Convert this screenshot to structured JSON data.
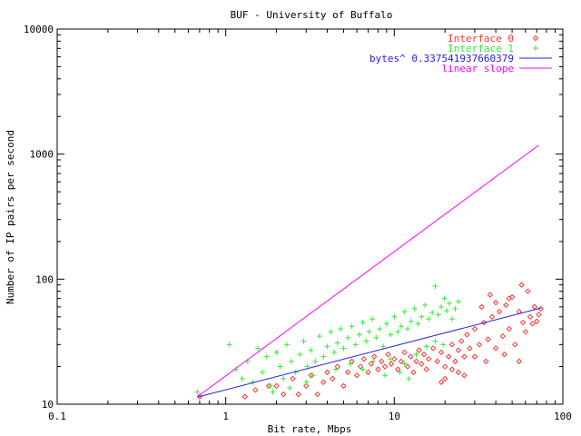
{
  "chart_data": {
    "type": "scatter",
    "title": "BUF - University of Buffalo",
    "xlabel": "Bit rate, Mbps",
    "ylabel": "Number of IP pairs per second",
    "xscale": "log",
    "yscale": "log",
    "xlim": [
      0.1,
      100
    ],
    "ylim": [
      10,
      10000
    ],
    "xticks": [
      {
        "value": 0.1,
        "label": "0.1"
      },
      {
        "value": 1,
        "label": "1"
      },
      {
        "value": 10,
        "label": "10"
      },
      {
        "value": 100,
        "label": "100"
      }
    ],
    "yticks": [
      {
        "value": 10,
        "label": "10"
      },
      {
        "value": 100,
        "label": "100"
      },
      {
        "value": 1000,
        "label": "1000"
      },
      {
        "value": 10000,
        "label": "10000"
      }
    ],
    "grid": false,
    "legend_position": "top-right",
    "series": [
      {
        "name": "Interface 0",
        "kind": "points",
        "marker": "diamond",
        "color": "#ff3333",
        "points": [
          [
            0.7,
            11.5
          ],
          [
            1.3,
            11.5
          ],
          [
            1.5,
            13
          ],
          [
            1.8,
            14
          ],
          [
            2.0,
            14
          ],
          [
            2.2,
            12
          ],
          [
            2.5,
            16
          ],
          [
            2.7,
            12
          ],
          [
            3.0,
            14
          ],
          [
            3.2,
            17
          ],
          [
            3.5,
            12
          ],
          [
            3.8,
            15
          ],
          [
            4.0,
            18
          ],
          [
            4.3,
            16
          ],
          [
            4.6,
            20
          ],
          [
            5.0,
            14
          ],
          [
            5.3,
            18
          ],
          [
            5.6,
            22
          ],
          [
            6.0,
            17
          ],
          [
            6.3,
            20
          ],
          [
            6.6,
            23
          ],
          [
            7.0,
            18
          ],
          [
            7.3,
            21
          ],
          [
            7.6,
            24
          ],
          [
            8.0,
            19
          ],
          [
            8.4,
            22
          ],
          [
            8.8,
            20
          ],
          [
            9.2,
            25
          ],
          [
            9.6,
            21
          ],
          [
            10.0,
            23
          ],
          [
            10.5,
            19
          ],
          [
            11.0,
            22
          ],
          [
            11.5,
            26
          ],
          [
            12.0,
            20
          ],
          [
            12.5,
            24
          ],
          [
            13.0,
            18
          ],
          [
            13.5,
            22
          ],
          [
            14.0,
            27
          ],
          [
            14.5,
            21
          ],
          [
            15.0,
            25
          ],
          [
            15.5,
            19
          ],
          [
            16.0,
            23
          ],
          [
            17.0,
            28
          ],
          [
            18.0,
            22
          ],
          [
            19.0,
            26
          ],
          [
            20.0,
            20
          ],
          [
            21.0,
            24
          ],
          [
            22.0,
            30
          ],
          [
            23.0,
            22
          ],
          [
            24.0,
            27
          ],
          [
            25.0,
            32
          ],
          [
            26.0,
            24
          ],
          [
            27.0,
            36
          ],
          [
            28.0,
            28
          ],
          [
            30.0,
            40
          ],
          [
            32.0,
            30
          ],
          [
            34.0,
            45
          ],
          [
            36.0,
            33
          ],
          [
            38.0,
            50
          ],
          [
            40.0,
            28
          ],
          [
            42.0,
            55
          ],
          [
            44.0,
            35
          ],
          [
            46.0,
            62
          ],
          [
            48.0,
            40
          ],
          [
            50.0,
            72
          ],
          [
            52.0,
            30
          ],
          [
            55.0,
            55
          ],
          [
            58.0,
            45
          ],
          [
            60.0,
            38
          ],
          [
            62.0,
            80
          ],
          [
            64.0,
            50
          ],
          [
            66.0,
            44
          ],
          [
            68.0,
            60
          ],
          [
            70.0,
            46
          ],
          [
            72.0,
            52
          ],
          [
            74.0,
            58
          ],
          [
            20.0,
            16
          ],
          [
            22.0,
            19
          ],
          [
            24.0,
            18
          ],
          [
            19.0,
            15
          ],
          [
            30.0,
            24
          ],
          [
            35.0,
            22
          ],
          [
            45.0,
            25
          ],
          [
            55.0,
            22
          ],
          [
            26.0,
            17
          ],
          [
            33.0,
            60
          ],
          [
            37.0,
            75
          ],
          [
            40.0,
            65
          ],
          [
            48.0,
            70
          ],
          [
            57.0,
            90
          ]
        ]
      },
      {
        "name": "Interface 1",
        "kind": "points",
        "marker": "plus",
        "color": "#33ee33",
        "points": [
          [
            0.68,
            12.5
          ],
          [
            1.05,
            30
          ],
          [
            1.15,
            19
          ],
          [
            1.25,
            16
          ],
          [
            1.35,
            22
          ],
          [
            1.45,
            15
          ],
          [
            1.55,
            28
          ],
          [
            1.65,
            18
          ],
          [
            1.75,
            24
          ],
          [
            1.85,
            14
          ],
          [
            2.0,
            26
          ],
          [
            2.1,
            20
          ],
          [
            2.2,
            16
          ],
          [
            2.3,
            30
          ],
          [
            2.45,
            22
          ],
          [
            2.6,
            18
          ],
          [
            2.75,
            25
          ],
          [
            2.9,
            32
          ],
          [
            3.05,
            20
          ],
          [
            3.2,
            27
          ],
          [
            3.4,
            22
          ],
          [
            3.6,
            35
          ],
          [
            3.8,
            24
          ],
          [
            4.0,
            29
          ],
          [
            4.2,
            38
          ],
          [
            4.4,
            26
          ],
          [
            4.6,
            31
          ],
          [
            4.8,
            40
          ],
          [
            5.0,
            28
          ],
          [
            5.3,
            34
          ],
          [
            5.6,
            42
          ],
          [
            5.9,
            30
          ],
          [
            6.2,
            36
          ],
          [
            6.5,
            45
          ],
          [
            6.8,
            32
          ],
          [
            7.1,
            38
          ],
          [
            7.4,
            48
          ],
          [
            7.8,
            34
          ],
          [
            8.2,
            40
          ],
          [
            8.6,
            29
          ],
          [
            9.0,
            44
          ],
          [
            9.5,
            36
          ],
          [
            10.0,
            50
          ],
          [
            10.5,
            38
          ],
          [
            11.0,
            42
          ],
          [
            11.5,
            55
          ],
          [
            12.0,
            40
          ],
          [
            12.6,
            46
          ],
          [
            13.2,
            58
          ],
          [
            13.8,
            44
          ],
          [
            14.5,
            50
          ],
          [
            15.2,
            62
          ],
          [
            16.0,
            48
          ],
          [
            16.8,
            54
          ],
          [
            17.5,
            88
          ],
          [
            18.2,
            52
          ],
          [
            19.0,
            60
          ],
          [
            19.8,
            70
          ],
          [
            20.5,
            56
          ],
          [
            21.2,
            64
          ],
          [
            22.0,
            48
          ],
          [
            23.0,
            58
          ],
          [
            24.0,
            66
          ],
          [
            3.0,
            15
          ],
          [
            3.3,
            17
          ],
          [
            4.5,
            19
          ],
          [
            5.5,
            21
          ],
          [
            6.5,
            19
          ],
          [
            7.5,
            22
          ],
          [
            9.5,
            23
          ],
          [
            11.5,
            21
          ],
          [
            13.5,
            25
          ],
          [
            15.5,
            29
          ],
          [
            17.5,
            32
          ],
          [
            19.5,
            30
          ],
          [
            10.8,
            18
          ],
          [
            8.8,
            17
          ],
          [
            12.2,
            16
          ],
          [
            2.4,
            13.5
          ],
          [
            1.9,
            12.5
          ]
        ]
      },
      {
        "name": "bytes^ 0.337541937660379",
        "kind": "line",
        "color": "#2222dd",
        "points": [
          [
            0.68,
            11.4
          ],
          [
            74,
            58.8
          ]
        ]
      },
      {
        "name": "linear slope",
        "kind": "line",
        "color": "#ff00ff",
        "points": [
          [
            0.68,
            11.5
          ],
          [
            72,
            1180
          ]
        ]
      }
    ]
  }
}
